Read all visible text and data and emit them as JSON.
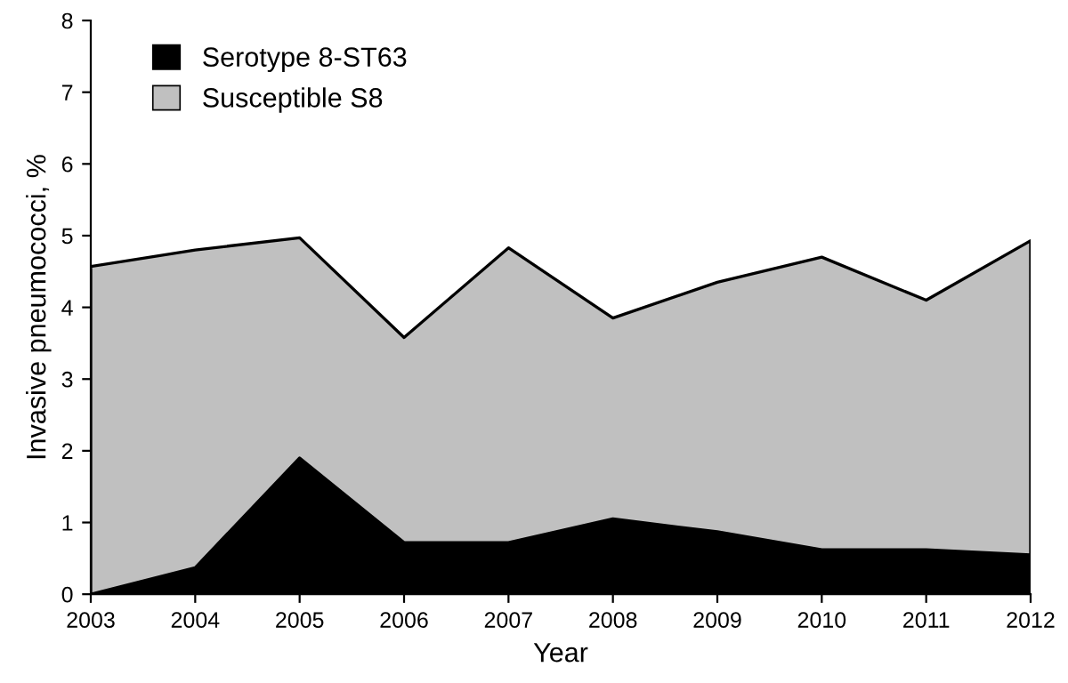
{
  "chart_data": {
    "type": "area",
    "xlabel": "Year",
    "ylabel": "Invasive pneumococci, %",
    "x": [
      2003,
      2004,
      2005,
      2006,
      2007,
      2008,
      2009,
      2010,
      2011,
      2012
    ],
    "series": [
      {
        "name": "Serotype 8-ST63",
        "color": "#000000",
        "values": [
          0,
          0.37,
          1.9,
          0.72,
          0.72,
          1.05,
          0.87,
          0.62,
          0.62,
          0.55
        ]
      },
      {
        "name": "Susceptible S8",
        "color": "#c0c0c0",
        "values": [
          4.57,
          4.8,
          4.97,
          3.58,
          4.83,
          3.85,
          4.35,
          4.7,
          4.1,
          4.93
        ]
      }
    ],
    "xlim": [
      2003,
      2012
    ],
    "xticks": [
      2003,
      2004,
      2005,
      2006,
      2007,
      2008,
      2009,
      2010,
      2011,
      2012
    ],
    "ylim": [
      0,
      8
    ],
    "yticks": [
      0,
      1,
      2,
      3,
      4,
      5,
      6,
      7,
      8
    ],
    "grid": false,
    "legend": "top left"
  }
}
